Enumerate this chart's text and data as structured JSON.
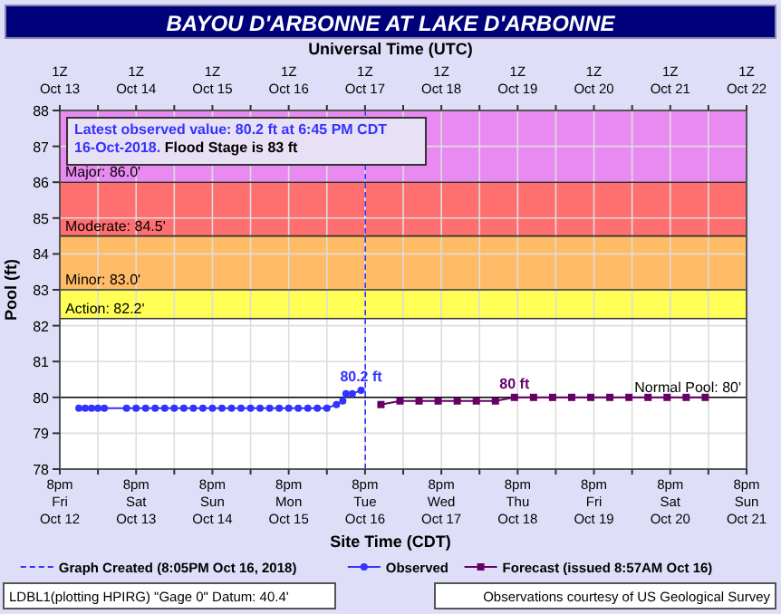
{
  "chart_data": {
    "type": "line",
    "title": "BAYOU D'ARBONNE AT LAKE D'ARBONNE",
    "xlabel": "Site Time (CDT)",
    "x2label": "Universal Time (UTC)",
    "ylabel": "Pool (ft)",
    "xlim": [
      "2018-10-12T20:00",
      "2018-10-21T20:00"
    ],
    "xticks": [
      {
        "value": "2018-10-12T20:00",
        "label": "8pm\nFri\nOct 12"
      },
      {
        "value": "2018-10-13T08:00",
        "label": null
      },
      {
        "value": "2018-10-13T20:00",
        "label": "8pm\nSat\nOct 13"
      },
      {
        "value": "2018-10-14T08:00",
        "label": null
      },
      {
        "value": "2018-10-14T20:00",
        "label": "8pm\nSun\nOct 14"
      },
      {
        "value": "2018-10-15T08:00",
        "label": null
      },
      {
        "value": "2018-10-15T20:00",
        "label": "8pm\nMon\nOct 15"
      },
      {
        "value": "2018-10-16T08:00",
        "label": null
      },
      {
        "value": "2018-10-16T20:00",
        "label": "8pm\nTue\nOct 16"
      },
      {
        "value": "2018-10-17T08:00",
        "label": null
      },
      {
        "value": "2018-10-17T20:00",
        "label": "8pm\nWed\nOct 17"
      },
      {
        "value": "2018-10-18T08:00",
        "label": null
      },
      {
        "value": "2018-10-18T20:00",
        "label": "8pm\nThu\nOct 18"
      },
      {
        "value": "2018-10-19T08:00",
        "label": null
      },
      {
        "value": "2018-10-19T20:00",
        "label": "8pm\nFri\nOct 19"
      },
      {
        "value": "2018-10-20T08:00",
        "label": null
      },
      {
        "value": "2018-10-20T20:00",
        "label": "8pm\nSat\nOct 20"
      },
      {
        "value": "2018-10-21T08:00",
        "label": null
      },
      {
        "value": "2018-10-21T20:00",
        "label": "8pm\nSun\nOct 21"
      }
    ],
    "x2lim": [
      "2018-10-12T20:00",
      "2018-10-21T20:00"
    ],
    "x2ticks": [
      {
        "value": "2018-10-12T20:00",
        "label": "1Z\nOct 13"
      },
      {
        "value": "2018-10-13T08:00",
        "label": null
      },
      {
        "value": "2018-10-13T20:00",
        "label": "1Z\nOct 14"
      },
      {
        "value": "2018-10-14T08:00",
        "label": null
      },
      {
        "value": "2018-10-14T20:00",
        "label": "1Z\nOct 15"
      },
      {
        "value": "2018-10-15T08:00",
        "label": null
      },
      {
        "value": "2018-10-15T20:00",
        "label": "1Z\nOct 16"
      },
      {
        "value": "2018-10-16T08:00",
        "label": null
      },
      {
        "value": "2018-10-16T20:00",
        "label": "1Z\nOct 17"
      },
      {
        "value": "2018-10-17T08:00",
        "label": null
      },
      {
        "value": "2018-10-17T20:00",
        "label": "1Z\nOct 18"
      },
      {
        "value": "2018-10-18T08:00",
        "label": null
      },
      {
        "value": "2018-10-18T20:00",
        "label": "1Z\nOct 19"
      },
      {
        "value": "2018-10-19T08:00",
        "label": null
      },
      {
        "value": "2018-10-19T20:00",
        "label": "1Z\nOct 20"
      },
      {
        "value": "2018-10-20T08:00",
        "label": null
      },
      {
        "value": "2018-10-20T20:00",
        "label": "1Z\nOct 21"
      },
      {
        "value": "2018-10-21T08:00",
        "label": null
      },
      {
        "value": "2018-10-21T20:00",
        "label": "1Z\nOct 22"
      }
    ],
    "ylim": [
      78,
      88
    ],
    "yticks": [
      78,
      79,
      80,
      81,
      82,
      83,
      84,
      85,
      86,
      87,
      88
    ],
    "grid": true,
    "legend": "bottom",
    "series": [
      {
        "name": "Observed",
        "color": "#3333ff",
        "marker": "circle",
        "x": [
          "2018-10-13T02:00",
          "2018-10-13T04:00",
          "2018-10-13T06:00",
          "2018-10-13T08:00",
          "2018-10-13T10:00",
          "2018-10-13T17:00",
          "2018-10-13T20:00",
          "2018-10-13T23:00",
          "2018-10-14T02:00",
          "2018-10-14T05:00",
          "2018-10-14T08:00",
          "2018-10-14T11:00",
          "2018-10-14T14:00",
          "2018-10-14T17:00",
          "2018-10-14T20:00",
          "2018-10-14T23:00",
          "2018-10-15T02:00",
          "2018-10-15T05:00",
          "2018-10-15T08:00",
          "2018-10-15T11:00",
          "2018-10-15T14:00",
          "2018-10-15T17:00",
          "2018-10-15T20:00",
          "2018-10-15T23:00",
          "2018-10-16T02:00",
          "2018-10-16T05:00",
          "2018-10-16T08:00",
          "2018-10-16T11:00",
          "2018-10-16T13:00",
          "2018-10-16T14:00",
          "2018-10-16T16:00",
          "2018-10-16T18:45"
        ],
        "values": [
          79.7,
          79.7,
          79.7,
          79.7,
          79.7,
          79.7,
          79.7,
          79.7,
          79.7,
          79.7,
          79.7,
          79.7,
          79.7,
          79.7,
          79.7,
          79.7,
          79.7,
          79.7,
          79.7,
          79.7,
          79.7,
          79.7,
          79.7,
          79.7,
          79.7,
          79.7,
          79.7,
          79.8,
          79.9,
          80.1,
          80.1,
          80.2
        ]
      },
      {
        "name": "Forecast (issued 8:57AM Oct 16)",
        "color": "#660066",
        "marker": "square",
        "x": [
          "2018-10-17T01:00",
          "2018-10-17T07:00",
          "2018-10-17T13:00",
          "2018-10-17T19:00",
          "2018-10-18T01:00",
          "2018-10-18T07:00",
          "2018-10-18T13:00",
          "2018-10-18T19:00",
          "2018-10-19T01:00",
          "2018-10-19T07:00",
          "2018-10-19T13:00",
          "2018-10-19T19:00",
          "2018-10-20T01:00",
          "2018-10-20T07:00",
          "2018-10-20T13:00",
          "2018-10-20T19:00",
          "2018-10-21T01:00",
          "2018-10-21T07:00"
        ],
        "values": [
          79.8,
          79.9,
          79.9,
          79.9,
          79.9,
          79.9,
          79.9,
          80,
          80,
          80,
          80,
          80,
          80,
          80,
          80,
          80,
          80,
          80
        ]
      }
    ],
    "bands": [
      {
        "axis": "y",
        "from": 82.2,
        "to": 83,
        "label": "Action: 82.2'",
        "color": "#ffff55"
      },
      {
        "axis": "y",
        "from": 83,
        "to": 84.5,
        "label": "Minor: 83.0'",
        "color": "#ffbb66"
      },
      {
        "axis": "y",
        "from": 84.5,
        "to": 86,
        "label": "Moderate: 84.5'",
        "color": "#ff6f6f"
      },
      {
        "axis": "y",
        "from": 86,
        "to": 88,
        "label": "Major: 86.0'",
        "color": "#e98af2"
      }
    ],
    "ref_lines": [
      {
        "axis": "y",
        "value": 80,
        "label": "Normal Pool: 80'",
        "color": "#000000",
        "line_style": "solid"
      },
      {
        "axis": "x",
        "value": "2018-10-16T20:05",
        "label": "Graph Created (8:05PM Oct 16, 2018)",
        "color": "#3333ff",
        "line_style": "dashed"
      }
    ],
    "annotations": [
      "Latest observed value: 80.2 ft at 6:45 PM CDT 16-Oct-2018.",
      "Flood Stage is 83 ft",
      {
        "text": "80.2 ft",
        "x": "2018-10-16T18:45",
        "y": 80.2
      },
      {
        "text": "80 ft",
        "x": "2018-10-18T19:00",
        "y": 80
      },
      "LDBL1(plotting HPIRG) \"Gage 0\" Datum: 40.4'",
      "Observations courtesy of US Geological Survey"
    ]
  }
}
